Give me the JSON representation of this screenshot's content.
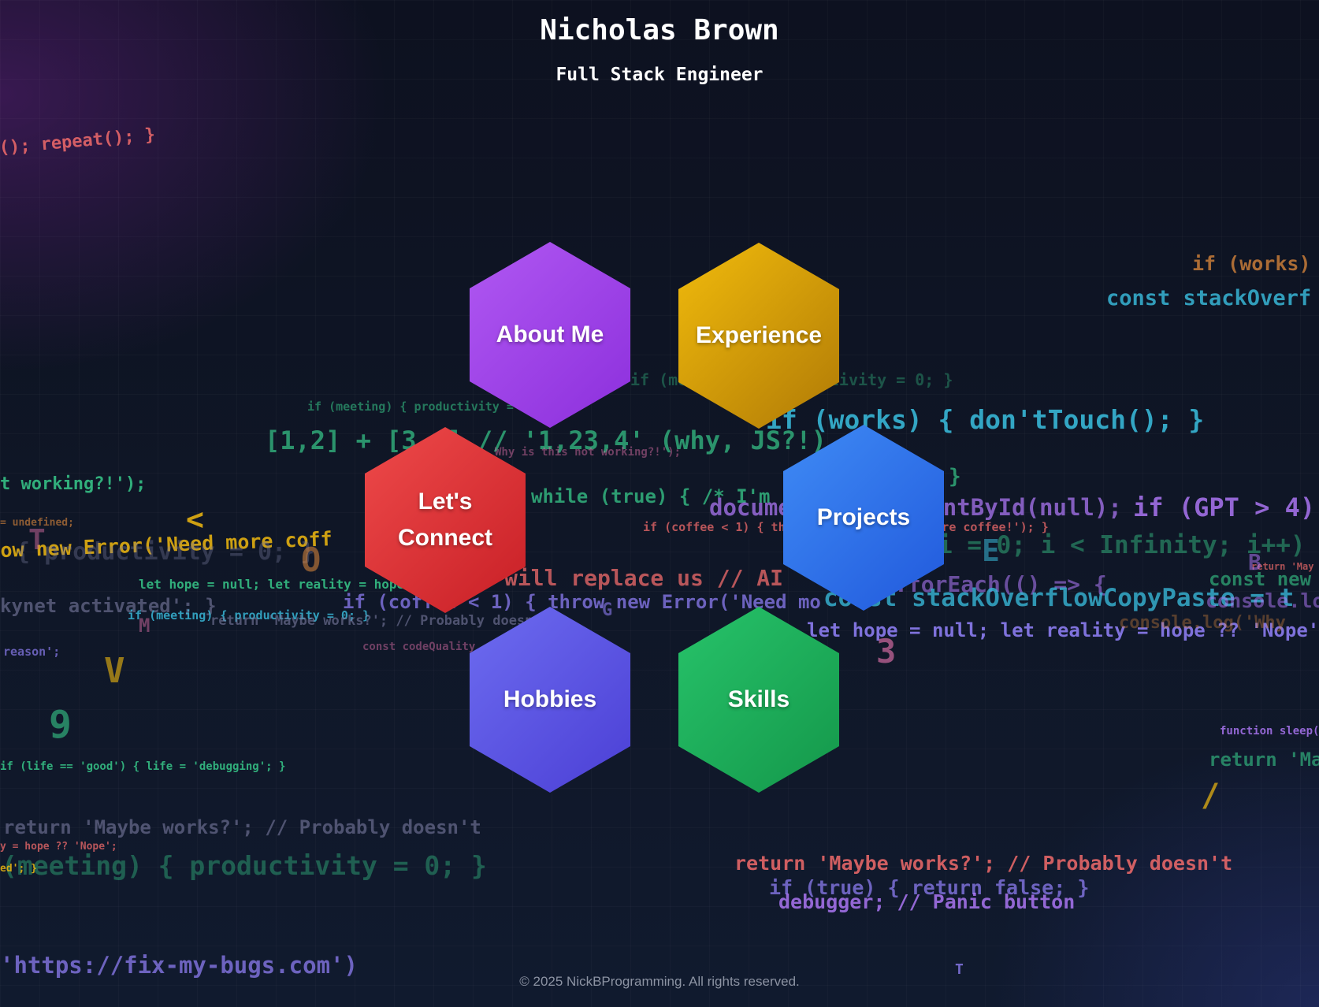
{
  "header": {
    "name": "Nicholas Brown",
    "role": "Full Stack Engineer"
  },
  "nav": {
    "about": "About Me",
    "experience": "Experience",
    "connect": "Let's\nConnect",
    "projects": "Projects",
    "hobbies": "Hobbies",
    "skills": "Skills"
  },
  "footer": {
    "copyright": "© 2025 NickBProgramming. All rights reserved."
  },
  "background_code": {
    "c1": "(); repeat(); }",
    "c2": "if (works)",
    "c3": "const stackOverf",
    "c4": "if (meeting) { productivity = 0; }",
    "c5": "if (works) { don'tTouch(); }",
    "c6": "[1,2] + [3,4] // '1,23,4' (why, JS?!)",
    "c7": "Why is this not working?!');",
    "c8": "t working?!');",
    "c9": "while (true) { /* I'm",
    "c10": "}",
    "c11": "if (GPT > 4) // Works?",
    "c12": "= undefined;",
    "c13": "if (coffee < 1) { throw new Error('Need more coffee!'); }",
    "c14": "ow new Error('Need more coff",
    "c15": "i = 0; i < Infinity; i++)",
    "c16": "{ productivity = 0; }",
    "c17": "will replace us // AI",
    "c18": "const new",
    "c19": "let hope = null; let reality = hope",
    "c20": "kynet activated'; }",
    "c21": "if (coffee < 1) { throw new Error('Need mo",
    "c22": "const stackOverflowCopyPaste = t",
    "c23": "console.log('WH",
    "c24": "if (meeting) { productivity = 0; }",
    "c25": "return 'Maybe works?'; // Probably doesn't",
    "c26": "let hope = null; let reality = hope ?? 'Nope';",
    "c27": "console.log('Why",
    "c28": "reason';",
    "c29": "const codeQuality",
    "c30": "if (life == 'good') { life = 'debugging'; }",
    "c31": "function sleep(m",
    "c32": "return 'Ma",
    "c33": "return 'Maybe works?'; // Probably doesn't",
    "c34": "y = hope ?? 'Nope';",
    "c35": "(meeting) { productivity = 0; }",
    "c36": "ed'; }",
    "c37": "return 'Maybe works?'; // Probably doesn't",
    "c38": "if (true) { return false; }",
    "c39": "debugger; // Panic button",
    "c40": "'https://fix-my-bugs.com')",
    "c41": "document.getElementById(null);",
    "c42": ".forEach(() => {",
    "c43": "return 'May",
    "l1": "<",
    "l2": "T",
    "l3": "O",
    "l4": "M",
    "l5": "V",
    "l6": "9",
    "l7": "3",
    "l8": "/",
    "l9": "T",
    "l10": "G",
    "l11": "E",
    "l12": "B"
  }
}
